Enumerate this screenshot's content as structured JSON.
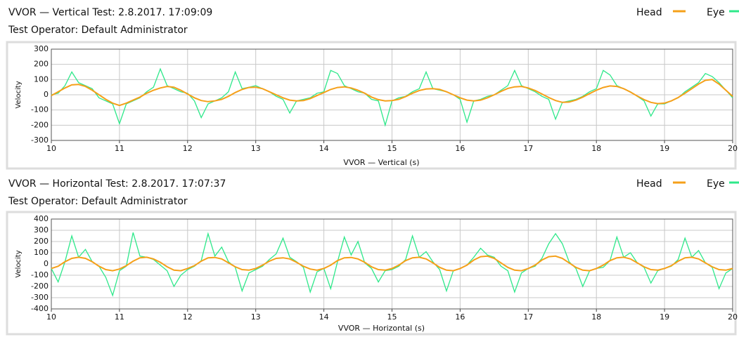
{
  "chart_data": [
    {
      "type": "line",
      "title": "VVOR — Vertical Test: 2.8.2017. 17:09:09",
      "subtitle": "Test Operator: Default Administrator",
      "x_label": "VVOR — Vertical  (s)",
      "y_label": "Velocity",
      "legend": "top-right",
      "grid": true,
      "xlim": [
        10,
        20
      ],
      "xticks": [
        10,
        11,
        12,
        13,
        14,
        15,
        16,
        17,
        18,
        19,
        20
      ],
      "ylim": [
        -300,
        300
      ],
      "yticks": [
        -300,
        -200,
        -100,
        0,
        100,
        200,
        300
      ],
      "x": [
        10,
        10.1,
        10.2,
        10.3,
        10.4,
        10.5,
        10.6,
        10.7,
        10.8,
        10.9,
        11,
        11.1,
        11.2,
        11.3,
        11.4,
        11.5,
        11.6,
        11.7,
        11.8,
        11.9,
        12,
        12.1,
        12.2,
        12.3,
        12.4,
        12.5,
        12.6,
        12.7,
        12.8,
        12.9,
        13,
        13.1,
        13.2,
        13.3,
        13.4,
        13.5,
        13.6,
        13.7,
        13.8,
        13.9,
        14,
        14.1,
        14.2,
        14.3,
        14.4,
        14.5,
        14.6,
        14.7,
        14.8,
        14.9,
        15,
        15.1,
        15.2,
        15.3,
        15.4,
        15.5,
        15.6,
        15.7,
        15.8,
        15.9,
        16,
        16.1,
        16.2,
        16.3,
        16.4,
        16.5,
        16.6,
        16.7,
        16.8,
        16.9,
        17,
        17.1,
        17.2,
        17.3,
        17.4,
        17.5,
        17.6,
        17.7,
        17.8,
        17.9,
        18,
        18.1,
        18.2,
        18.3,
        18.4,
        18.5,
        18.6,
        18.7,
        18.8,
        18.9,
        19,
        19.1,
        19.2,
        19.3,
        19.4,
        19.5,
        19.6,
        19.7,
        19.8,
        19.9,
        20
      ],
      "series": [
        {
          "name": "Eye",
          "color": "#2ee88a",
          "values": [
            0,
            10,
            60,
            150,
            80,
            60,
            40,
            -20,
            -40,
            -60,
            -190,
            -60,
            -40,
            -20,
            20,
            50,
            170,
            60,
            40,
            20,
            10,
            -40,
            -150,
            -60,
            -40,
            -20,
            20,
            150,
            40,
            50,
            60,
            40,
            20,
            -10,
            -30,
            -120,
            -40,
            -30,
            -20,
            10,
            20,
            160,
            140,
            60,
            40,
            20,
            10,
            -30,
            -40,
            -200,
            -40,
            -20,
            -10,
            20,
            40,
            150,
            40,
            30,
            20,
            0,
            -30,
            -180,
            -40,
            -30,
            -10,
            0,
            30,
            60,
            160,
            60,
            40,
            20,
            -10,
            -30,
            -160,
            -50,
            -40,
            -30,
            -10,
            20,
            40,
            160,
            130,
            60,
            40,
            20,
            -10,
            -40,
            -140,
            -60,
            -60,
            -40,
            -20,
            20,
            50,
            80,
            140,
            120,
            80,
            30,
            -20
          ]
        },
        {
          "name": "Head",
          "color": "#f5a01a",
          "values": [
            -5,
            20,
            45,
            65,
            68,
            55,
            30,
            0,
            -30,
            -55,
            -70,
            -55,
            -35,
            -15,
            10,
            30,
            45,
            55,
            50,
            30,
            5,
            -20,
            -38,
            -45,
            -40,
            -30,
            -10,
            15,
            35,
            48,
            50,
            40,
            20,
            0,
            -20,
            -35,
            -40,
            -38,
            -25,
            -5,
            15,
            35,
            48,
            52,
            45,
            30,
            10,
            -15,
            -32,
            -40,
            -38,
            -30,
            -12,
            10,
            28,
            38,
            40,
            35,
            20,
            0,
            -20,
            -35,
            -40,
            -35,
            -20,
            0,
            22,
            42,
            52,
            55,
            45,
            28,
            5,
            -18,
            -38,
            -50,
            -48,
            -35,
            -15,
            8,
            30,
            48,
            58,
            55,
            40,
            18,
            -8,
            -32,
            -50,
            -58,
            -55,
            -40,
            -18,
            10,
            40,
            70,
            95,
            100,
            70,
            30,
            -10
          ]
        }
      ]
    },
    {
      "type": "line",
      "title": "VVOR — Horizontal Test: 2.8.2017. 17:07:37",
      "subtitle": "Test Operator: Default Administrator",
      "x_label": "VVOR — Horizontal  (s)",
      "y_label": "Velocity",
      "legend": "top-right",
      "grid": true,
      "xlim": [
        10,
        20
      ],
      "xticks": [
        10,
        11,
        12,
        13,
        14,
        15,
        16,
        17,
        18,
        19,
        20
      ],
      "ylim": [
        -400,
        400
      ],
      "yticks": [
        -400,
        -300,
        -200,
        -100,
        0,
        100,
        200,
        300,
        400
      ],
      "x": [
        10,
        10.1,
        10.2,
        10.3,
        10.4,
        10.5,
        10.6,
        10.7,
        10.8,
        10.9,
        11,
        11.1,
        11.2,
        11.3,
        11.4,
        11.5,
        11.6,
        11.7,
        11.8,
        11.9,
        12,
        12.1,
        12.2,
        12.3,
        12.4,
        12.5,
        12.6,
        12.7,
        12.8,
        12.9,
        13,
        13.1,
        13.2,
        13.3,
        13.4,
        13.5,
        13.6,
        13.7,
        13.8,
        13.9,
        14,
        14.1,
        14.2,
        14.3,
        14.4,
        14.5,
        14.6,
        14.7,
        14.8,
        14.9,
        15,
        15.1,
        15.2,
        15.3,
        15.4,
        15.5,
        15.6,
        15.7,
        15.8,
        15.9,
        16,
        16.1,
        16.2,
        16.3,
        16.4,
        16.5,
        16.6,
        16.7,
        16.8,
        16.9,
        17,
        17.1,
        17.2,
        17.3,
        17.4,
        17.5,
        17.6,
        17.7,
        17.8,
        17.9,
        18,
        18.1,
        18.2,
        18.3,
        18.4,
        18.5,
        18.6,
        18.7,
        18.8,
        18.9,
        19,
        19.1,
        19.2,
        19.3,
        19.4,
        19.5,
        19.6,
        19.7,
        19.8,
        19.9,
        20
      ],
      "series": [
        {
          "name": "Eye",
          "color": "#2ee88a",
          "values": [
            -40,
            -160,
            20,
            250,
            60,
            130,
            20,
            -20,
            -120,
            -280,
            -60,
            -20,
            280,
            70,
            60,
            40,
            -10,
            -60,
            -200,
            -100,
            -50,
            -20,
            30,
            270,
            70,
            150,
            20,
            -30,
            -240,
            -80,
            -50,
            -20,
            40,
            90,
            230,
            60,
            20,
            -30,
            -250,
            -70,
            -40,
            -220,
            20,
            240,
            80,
            200,
            10,
            -40,
            -160,
            -60,
            -50,
            -20,
            40,
            250,
            60,
            110,
            20,
            -50,
            -240,
            -60,
            -40,
            -10,
            60,
            140,
            80,
            60,
            -20,
            -60,
            -250,
            -80,
            -40,
            -20,
            50,
            180,
            270,
            180,
            20,
            -40,
            -200,
            -60,
            -40,
            -30,
            30,
            240,
            60,
            100,
            10,
            -30,
            -170,
            -60,
            -40,
            -20,
            40,
            230,
            60,
            120,
            10,
            -30,
            -220,
            -80,
            -40
          ]
        },
        {
          "name": "Head",
          "color": "#f5a01a",
          "values": [
            -40,
            -20,
            20,
            50,
            60,
            50,
            20,
            -20,
            -50,
            -60,
            -45,
            -15,
            25,
            55,
            60,
            45,
            15,
            -25,
            -55,
            -60,
            -40,
            -15,
            25,
            55,
            58,
            45,
            10,
            -25,
            -50,
            -55,
            -40,
            -10,
            25,
            50,
            55,
            45,
            15,
            -20,
            -45,
            -55,
            -40,
            -10,
            30,
            55,
            58,
            45,
            15,
            -25,
            -50,
            -55,
            -40,
            -10,
            30,
            55,
            60,
            45,
            10,
            -30,
            -55,
            -60,
            -40,
            -10,
            35,
            65,
            70,
            50,
            10,
            -30,
            -55,
            -60,
            -40,
            -10,
            35,
            65,
            70,
            50,
            10,
            -30,
            -55,
            -60,
            -40,
            -10,
            30,
            55,
            60,
            45,
            10,
            -25,
            -50,
            -55,
            -40,
            -15,
            25,
            55,
            60,
            45,
            10,
            -25,
            -50,
            -55,
            -40
          ]
        }
      ]
    }
  ]
}
